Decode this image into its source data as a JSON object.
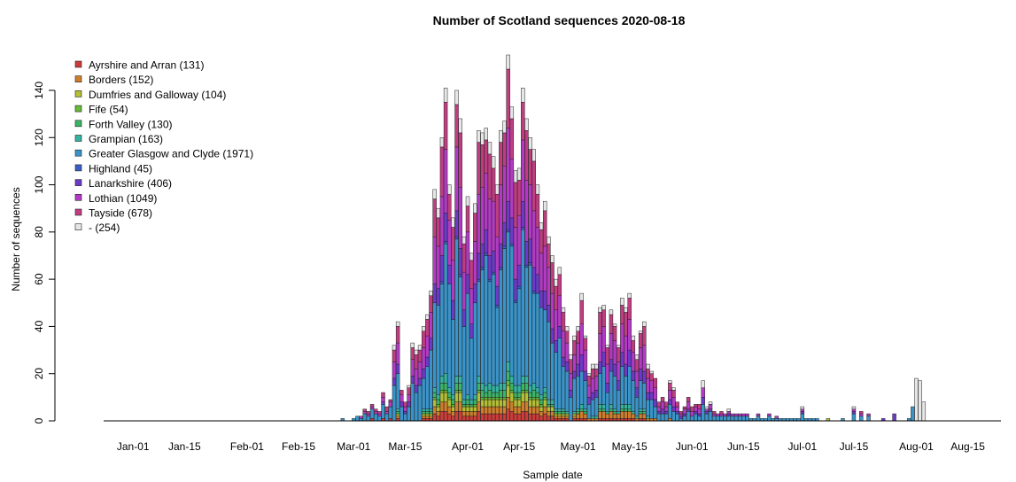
{
  "chart_data": {
    "type": "bar",
    "stacked": true,
    "title": "Number of Scotland sequences 2020-08-18",
    "xlabel": "Sample date",
    "ylabel": "Number of sequences",
    "x_ticks": [
      "Jan-01",
      "Jan-15",
      "Feb-01",
      "Feb-15",
      "Mar-01",
      "Mar-15",
      "Apr-01",
      "Apr-15",
      "May-01",
      "May-15",
      "Jun-01",
      "Jun-15",
      "Jul-01",
      "Jul-15",
      "Aug-01",
      "Aug-15"
    ],
    "y_ticks": [
      0,
      20,
      40,
      60,
      80,
      100,
      120,
      140
    ],
    "ylim": [
      0,
      155
    ],
    "xlim": [
      "2019-12-24",
      "2020-08-24"
    ],
    "grid": false,
    "legend_position": "top-left",
    "series": [
      {
        "name": "Ayrshire and Arran (131)",
        "color": "#cc3c3a"
      },
      {
        "name": "Borders (152)",
        "color": "#cf7f2b"
      },
      {
        "name": "Dumfries and Galloway (104)",
        "color": "#b4bf33"
      },
      {
        "name": "Fife (54)",
        "color": "#66bb37"
      },
      {
        "name": "Forth Valley (130)",
        "color": "#3bb566"
      },
      {
        "name": "Grampian (163)",
        "color": "#33b4a1"
      },
      {
        "name": "Greater Glasgow and Clyde (1971)",
        "color": "#3a94c9"
      },
      {
        "name": "Highland (45)",
        "color": "#3a5ec9"
      },
      {
        "name": "Lanarkshire (406)",
        "color": "#6b3ac9"
      },
      {
        "name": "Lothian (1049)",
        "color": "#b33ac4"
      },
      {
        "name": "Tayside (678)",
        "color": "#c13d82"
      },
      {
        "name": "- (254)",
        "color": "#e6e6e6"
      }
    ],
    "dates": [
      "2020-02-27",
      "2020-03-01",
      "2020-03-02",
      "2020-03-03",
      "2020-03-04",
      "2020-03-05",
      "2020-03-06",
      "2020-03-07",
      "2020-03-08",
      "2020-03-09",
      "2020-03-10",
      "2020-03-11",
      "2020-03-12",
      "2020-03-13",
      "2020-03-14",
      "2020-03-15",
      "2020-03-16",
      "2020-03-17",
      "2020-03-18",
      "2020-03-19",
      "2020-03-20",
      "2020-03-21",
      "2020-03-22",
      "2020-03-23",
      "2020-03-24",
      "2020-03-25",
      "2020-03-26",
      "2020-03-27",
      "2020-03-28",
      "2020-03-29",
      "2020-03-30",
      "2020-03-31",
      "2020-04-01",
      "2020-04-02",
      "2020-04-03",
      "2020-04-04",
      "2020-04-05",
      "2020-04-06",
      "2020-04-07",
      "2020-04-08",
      "2020-04-09",
      "2020-04-10",
      "2020-04-11",
      "2020-04-12",
      "2020-04-13",
      "2020-04-14",
      "2020-04-15",
      "2020-04-16",
      "2020-04-17",
      "2020-04-18",
      "2020-04-19",
      "2020-04-20",
      "2020-04-21",
      "2020-04-22",
      "2020-04-23",
      "2020-04-24",
      "2020-04-25",
      "2020-04-26",
      "2020-04-27",
      "2020-04-28",
      "2020-04-29",
      "2020-04-30",
      "2020-05-01",
      "2020-05-02",
      "2020-05-03",
      "2020-05-04",
      "2020-05-05",
      "2020-05-06",
      "2020-05-07",
      "2020-05-08",
      "2020-05-09",
      "2020-05-10",
      "2020-05-11",
      "2020-05-12",
      "2020-05-13",
      "2020-05-14",
      "2020-05-15",
      "2020-05-16",
      "2020-05-17",
      "2020-05-18",
      "2020-05-19",
      "2020-05-20",
      "2020-05-21",
      "2020-05-22",
      "2020-05-23",
      "2020-05-24",
      "2020-05-25",
      "2020-05-26",
      "2020-05-27",
      "2020-05-28",
      "2020-05-29",
      "2020-05-30",
      "2020-05-31",
      "2020-06-01",
      "2020-06-02",
      "2020-06-03",
      "2020-06-04",
      "2020-06-05",
      "2020-06-06",
      "2020-06-07",
      "2020-06-08",
      "2020-06-09",
      "2020-06-10",
      "2020-06-11",
      "2020-06-12",
      "2020-06-13",
      "2020-06-14",
      "2020-06-15",
      "2020-06-16",
      "2020-06-17",
      "2020-06-18",
      "2020-06-19",
      "2020-06-20",
      "2020-06-21",
      "2020-06-22",
      "2020-06-23",
      "2020-06-24",
      "2020-06-25",
      "2020-06-26",
      "2020-06-27",
      "2020-06-28",
      "2020-06-29",
      "2020-06-30",
      "2020-07-01",
      "2020-07-02",
      "2020-07-03",
      "2020-07-04",
      "2020-07-05",
      "2020-07-08",
      "2020-07-12",
      "2020-07-15",
      "2020-07-17",
      "2020-07-19",
      "2020-07-23",
      "2020-07-26",
      "2020-07-30",
      "2020-07-31",
      "2020-08-01",
      "2020-08-02",
      "2020-08-03"
    ],
    "totals": [
      1,
      1,
      2,
      2,
      5,
      4,
      7,
      5,
      4,
      12,
      6,
      9,
      32,
      42,
      13,
      8,
      15,
      33,
      30,
      32,
      40,
      45,
      55,
      98,
      90,
      120,
      141,
      100,
      86,
      140,
      128,
      78,
      95,
      71,
      92,
      123,
      122,
      124,
      118,
      112,
      100,
      123,
      127,
      155,
      133,
      106,
      107,
      141,
      128,
      120,
      115,
      100,
      84,
      93,
      78,
      70,
      60,
      65,
      48,
      40,
      28,
      36,
      40,
      54,
      36,
      20,
      24,
      24,
      48,
      49,
      32,
      47,
      41,
      32,
      52,
      48,
      54,
      36,
      28,
      38,
      42,
      24,
      21,
      18,
      8,
      10,
      8,
      17,
      14,
      8,
      4,
      6,
      10,
      6,
      7,
      7,
      17,
      6,
      8,
      4,
      3,
      4,
      3,
      5,
      3,
      3,
      3,
      3,
      3,
      1,
      1,
      3,
      1,
      1,
      3,
      1,
      2,
      1,
      1,
      1,
      1,
      1,
      1,
      6,
      1,
      1,
      1,
      1,
      1,
      1,
      6,
      4,
      3,
      1,
      3,
      1,
      6,
      18,
      17,
      8
    ]
  }
}
